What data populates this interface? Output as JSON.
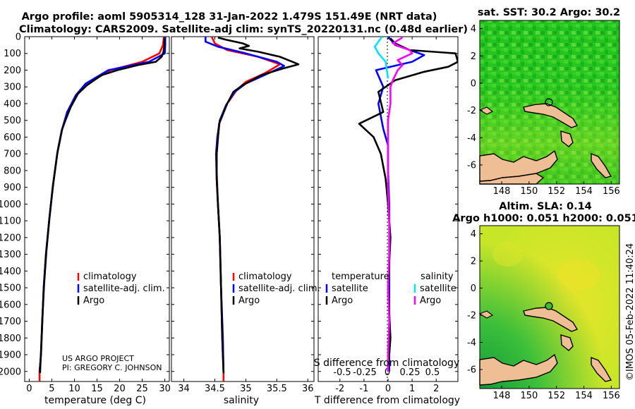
{
  "title": {
    "line1": "Argo profile: aoml 5905314_128 31-Jan-2022 1.479S 151.49E (NRT data)",
    "line2": "Climatology: CARS2009. Satellite-adj clim: synTS_20220131.nc (0.48d earlier)"
  },
  "chart_data": [
    {
      "type": "line",
      "id": "temperature_profile",
      "xlabel": "temperature (deg C)",
      "ylabel": "depth",
      "xlim": [
        -1,
        31
      ],
      "ylim": [
        2060,
        0
      ],
      "xticks": [
        0,
        5,
        10,
        15,
        20,
        25,
        30
      ],
      "yticks": [
        0,
        100,
        200,
        300,
        400,
        500,
        600,
        700,
        800,
        900,
        1000,
        1100,
        1200,
        1300,
        1400,
        1500,
        1600,
        1700,
        1800,
        1900,
        2000
      ],
      "series": [
        {
          "name": "climatology",
          "color": "#ff0000",
          "points": [
            [
              29.8,
              0
            ],
            [
              29.6,
              50
            ],
            [
              28.8,
              100
            ],
            [
              25,
              150
            ],
            [
              18,
              200
            ],
            [
              13,
              280
            ],
            [
              10.5,
              350
            ],
            [
              8.5,
              450
            ],
            [
              7.3,
              550
            ],
            [
              6.2,
              700
            ],
            [
              5.2,
              900
            ],
            [
              4.4,
              1100
            ],
            [
              3.7,
              1300
            ],
            [
              3.2,
              1500
            ],
            [
              2.9,
              1700
            ],
            [
              2.6,
              1900
            ],
            [
              2.3,
              2000
            ],
            [
              2.3,
              2060
            ]
          ]
        },
        {
          "name": "satellite-adj. clim.",
          "color": "#0000ff",
          "points": [
            [
              30.1,
              0
            ],
            [
              30.1,
              50
            ],
            [
              30.0,
              100
            ],
            [
              26.5,
              150
            ],
            [
              17.5,
              200
            ],
            [
              12.5,
              280
            ],
            [
              10.3,
              350
            ],
            [
              8.4,
              450
            ],
            [
              7.3,
              550
            ],
            [
              6.2,
              700
            ],
            [
              5.2,
              900
            ],
            [
              4.4,
              1100
            ],
            [
              3.7,
              1300
            ],
            [
              3.2,
              1500
            ],
            [
              2.9,
              1700
            ],
            [
              2.6,
              1900
            ],
            [
              2.3,
              2000
            ]
          ]
        },
        {
          "name": "Argo",
          "color": "#000000",
          "points": [
            [
              29.9,
              5
            ],
            [
              29.9,
              50
            ],
            [
              29.7,
              90
            ],
            [
              29.3,
              120
            ],
            [
              28.0,
              150
            ],
            [
              24.0,
              170
            ],
            [
              19.5,
              200
            ],
            [
              16,
              230
            ],
            [
              12.8,
              290
            ],
            [
              10.8,
              340
            ],
            [
              9.2,
              420
            ],
            [
              8.0,
              500
            ],
            [
              7.2,
              560
            ],
            [
              6.3,
              680
            ],
            [
              5.3,
              880
            ],
            [
              4.5,
              1080
            ],
            [
              3.8,
              1280
            ],
            [
              3.3,
              1480
            ],
            [
              2.9,
              1680
            ],
            [
              2.6,
              1880
            ],
            [
              2.4,
              2010
            ]
          ]
        }
      ],
      "legend": {
        "position": "bottom-right",
        "items": [
          "climatology",
          "satellite-adj. clim.",
          "Argo"
        ]
      },
      "annotation": [
        "US ARGO PROJECT",
        "PI: GREGORY C. JOHNSON"
      ]
    },
    {
      "type": "line",
      "id": "salinity_profile",
      "xlabel": "salinity",
      "xlim": [
        33.8,
        36.1
      ],
      "ylim": [
        2060,
        0
      ],
      "xticks": [
        34,
        34.5,
        35,
        35.5,
        36
      ],
      "series": [
        {
          "name": "climatology",
          "color": "#ff0000",
          "points": [
            [
              34.45,
              0
            ],
            [
              34.5,
              40
            ],
            [
              34.7,
              80
            ],
            [
              35.2,
              120
            ],
            [
              35.55,
              165
            ],
            [
              35.3,
              220
            ],
            [
              35.0,
              270
            ],
            [
              34.85,
              320
            ],
            [
              34.7,
              400
            ],
            [
              34.58,
              500
            ],
            [
              34.55,
              600
            ],
            [
              34.53,
              700
            ],
            [
              34.53,
              800
            ],
            [
              34.55,
              1000
            ],
            [
              34.58,
              1200
            ],
            [
              34.6,
              1500
            ],
            [
              34.62,
              1800
            ],
            [
              34.64,
              2000
            ],
            [
              34.64,
              2060
            ]
          ]
        },
        {
          "name": "satellite-adj. clim.",
          "color": "#0000ff",
          "points": [
            [
              34.35,
              0
            ],
            [
              34.35,
              30
            ],
            [
              34.55,
              60
            ],
            [
              35.0,
              100
            ],
            [
              35.5,
              150
            ],
            [
              35.62,
              175
            ],
            [
              35.3,
              230
            ],
            [
              35.0,
              280
            ],
            [
              34.82,
              330
            ],
            [
              34.68,
              410
            ],
            [
              34.58,
              500
            ],
            [
              34.54,
              600
            ],
            [
              34.52,
              700
            ],
            [
              34.53,
              850
            ],
            [
              34.55,
              1000
            ],
            [
              34.58,
              1200
            ],
            [
              34.6,
              1500
            ],
            [
              34.63,
              1800
            ],
            [
              34.64,
              2010
            ]
          ]
        },
        {
          "name": "Argo",
          "color": "#000000",
          "points": [
            [
              34.55,
              5
            ],
            [
              34.7,
              20
            ],
            [
              34.95,
              40
            ],
            [
              35.05,
              55
            ],
            [
              34.9,
              70
            ],
            [
              35.2,
              90
            ],
            [
              35.55,
              120
            ],
            [
              35.75,
              150
            ],
            [
              35.85,
              165
            ],
            [
              35.6,
              190
            ],
            [
              35.25,
              230
            ],
            [
              34.95,
              290
            ],
            [
              34.8,
              330
            ],
            [
              34.7,
              400
            ],
            [
              34.57,
              520
            ],
            [
              34.53,
              700
            ],
            [
              34.53,
              850
            ],
            [
              34.55,
              1000
            ],
            [
              34.58,
              1200
            ],
            [
              34.6,
              1500
            ],
            [
              34.62,
              1800
            ],
            [
              34.64,
              2010
            ]
          ]
        }
      ],
      "legend": {
        "position": "bottom-right",
        "items": [
          "climatology",
          "satellite-adj. clim.",
          "Argo"
        ]
      }
    },
    {
      "type": "line",
      "id": "difference_profile",
      "xlabel": "T difference from climatology",
      "xlabel_top": "S difference from climatology",
      "xlim": [
        -2.9,
        2.9
      ],
      "ylim": [
        2060,
        0
      ],
      "xticks": [
        -2,
        -1,
        0,
        1,
        2
      ],
      "xticks_top": [
        -0.5,
        -0.25,
        0,
        0.25,
        0.5
      ],
      "xticks_top_labels": [
        "-0.5",
        "-0.25",
        "0",
        "0.25",
        "0.5"
      ],
      "series": [
        {
          "name": "temperature satellite",
          "color": "#0000ff",
          "points": [
            [
              0,
              0
            ],
            [
              0.3,
              50
            ],
            [
              1.5,
              110
            ],
            [
              1.0,
              150
            ],
            [
              -0.5,
              200
            ],
            [
              -0.2,
              300
            ],
            [
              -0.4,
              400
            ],
            [
              -0.2,
              550
            ],
            [
              0,
              650
            ],
            [
              0,
              800
            ],
            [
              0.05,
              1000
            ],
            [
              0.05,
              1500
            ],
            [
              0.05,
              2000
            ]
          ]
        },
        {
          "name": "temperature Argo",
          "color": "#000000",
          "points": [
            [
              0.1,
              10
            ],
            [
              0.3,
              40
            ],
            [
              0.9,
              80
            ],
            [
              2.8,
              100
            ],
            [
              2.9,
              150
            ],
            [
              2.5,
              180
            ],
            [
              1.5,
              210
            ],
            [
              0.3,
              260
            ],
            [
              -0.4,
              330
            ],
            [
              -0.2,
              450
            ],
            [
              -1.2,
              520
            ],
            [
              -0.6,
              600
            ],
            [
              -0.3,
              700
            ],
            [
              -0.1,
              850
            ],
            [
              0,
              1000
            ],
            [
              0.1,
              1200
            ],
            [
              0,
              1500
            ],
            [
              0.1,
              1800
            ],
            [
              0,
              2000
            ]
          ]
        },
        {
          "name": "salinity satellite",
          "color": "#00e5ff",
          "points": [
            [
              -0.25,
              0
            ],
            [
              -0.4,
              30
            ],
            [
              -0.55,
              60
            ],
            [
              -0.4,
              100
            ],
            [
              -0.1,
              150
            ],
            [
              -0.05,
              200
            ],
            [
              0,
              250
            ]
          ]
        },
        {
          "name": "salinity Argo",
          "color": "#ff00ff",
          "points": [
            [
              0.6,
              5
            ],
            [
              0.2,
              40
            ],
            [
              0.5,
              60
            ],
            [
              0.9,
              80
            ],
            [
              1.0,
              100
            ],
            [
              0.4,
              140
            ],
            [
              0.6,
              170
            ],
            [
              0.4,
              200
            ],
            [
              0.2,
              260
            ],
            [
              0.1,
              300
            ],
            [
              0.1,
              400
            ],
            [
              0,
              500
            ],
            [
              0,
              700
            ],
            [
              0,
              900
            ],
            [
              0.05,
              1100
            ],
            [
              0.05,
              1300
            ],
            [
              0,
              1500
            ],
            [
              0.05,
              1700
            ],
            [
              0,
              1900
            ],
            [
              0,
              2000
            ]
          ]
        }
      ],
      "legend": {
        "groups": [
          {
            "title": "temperature",
            "items": [
              {
                "label": "satellite",
                "color": "#0000ff"
              },
              {
                "label": "Argo",
                "color": "#000000"
              }
            ]
          },
          {
            "title": "salinity",
            "items": [
              {
                "label": "satellite",
                "color": "#00e5ff"
              },
              {
                "label": "Argo",
                "color": "#ff00ff"
              }
            ]
          }
        ]
      }
    },
    {
      "type": "heatmap",
      "id": "sst_map",
      "title": "sat. SST: 30.2 Argo: 30.2",
      "xlim": [
        146.4,
        156.6
      ],
      "ylim": [
        -7.4,
        4.6
      ],
      "xticks": [
        148,
        150,
        152,
        154,
        156
      ],
      "yticks": [
        4,
        2,
        0,
        -2,
        -4,
        -6
      ],
      "marker": {
        "lon": 151.49,
        "lat": -1.479
      }
    },
    {
      "type": "heatmap",
      "id": "sla_map",
      "title": "Altim. SLA: 0.14",
      "subtitle": "Argo h1000: 0.051 h2000: 0.051",
      "xlim": [
        146.4,
        156.6
      ],
      "ylim": [
        -7.4,
        4.6
      ],
      "xticks": [
        148,
        150,
        152,
        154,
        156
      ],
      "yticks": [
        4,
        2,
        0,
        -2,
        -4,
        -6
      ],
      "marker": {
        "lon": 151.49,
        "lat": -1.479
      }
    }
  ],
  "footer": {
    "stamp": "©IMOS 05-Feb-2022 11:40:24"
  }
}
